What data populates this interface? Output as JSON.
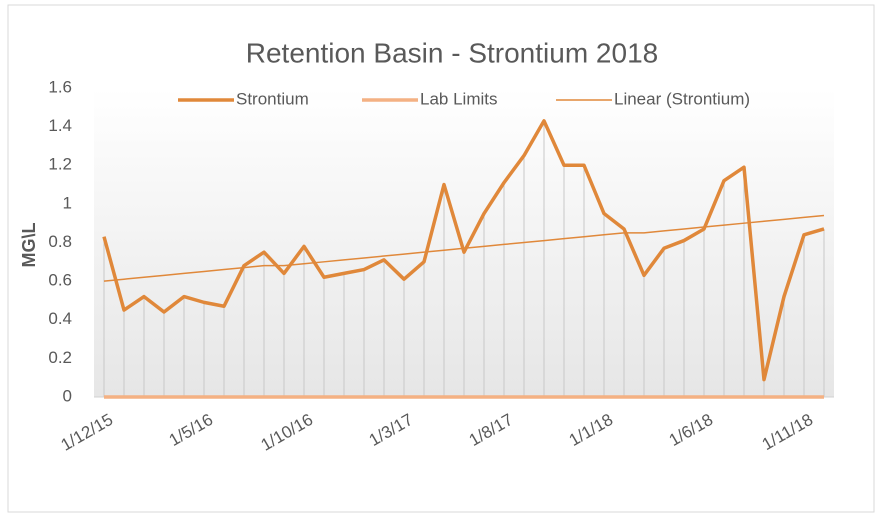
{
  "chart_data": {
    "type": "line",
    "title": "Retention Basin - Strontium 2018",
    "y_label": "MG\\L",
    "categories": [
      "1/12/15",
      null,
      null,
      null,
      null,
      "1/5/16",
      null,
      null,
      null,
      null,
      "1/10/16",
      null,
      null,
      null,
      null,
      "1/3/17",
      null,
      null,
      null,
      null,
      "1/8/17",
      null,
      null,
      null,
      null,
      "1/1/18",
      null,
      null,
      null,
      null,
      "1/6/18",
      null,
      null,
      null,
      null,
      "1/11/18",
      null
    ],
    "series": [
      {
        "name": "Strontium",
        "color": "#e0883a",
        "values": [
          0.83,
          0.45,
          0.52,
          0.44,
          0.52,
          0.49,
          0.47,
          0.68,
          0.75,
          0.64,
          0.78,
          0.62,
          0.64,
          0.66,
          0.71,
          0.61,
          0.7,
          1.1,
          0.75,
          0.95,
          1.11,
          1.25,
          1.43,
          1.2,
          1.2,
          0.95,
          0.87,
          0.63,
          0.77,
          0.81,
          0.87,
          1.12,
          1.19,
          0.09,
          0.52,
          0.84,
          0.87
        ]
      },
      {
        "name": "Lab Limits",
        "color": "#f4b183",
        "values": [
          0,
          0,
          0,
          0,
          0,
          0,
          0,
          0,
          0,
          0,
          0,
          0,
          0,
          0,
          0,
          0,
          0,
          0,
          0,
          0,
          0,
          0,
          0,
          0,
          0,
          0,
          0,
          0,
          0,
          0,
          0,
          0,
          0,
          0,
          0,
          0,
          0
        ]
      },
      {
        "name": "Linear (Strontium)",
        "color": "#e0883a",
        "values": [
          0.6,
          0.61,
          0.62,
          0.63,
          0.64,
          0.65,
          0.66,
          0.67,
          0.68,
          0.68,
          0.69,
          0.7,
          0.71,
          0.72,
          0.73,
          0.74,
          0.75,
          0.76,
          0.77,
          0.78,
          0.79,
          0.8,
          0.81,
          0.82,
          0.83,
          0.84,
          0.85,
          0.85,
          0.86,
          0.87,
          0.88,
          0.89,
          0.9,
          0.91,
          0.92,
          0.93,
          0.94
        ]
      }
    ],
    "ylim": [
      0,
      1.6
    ],
    "yticks": [
      0,
      0.2,
      0.4,
      0.6,
      0.8,
      1,
      1.2,
      1.4,
      1.6
    ],
    "drop_lines": true,
    "legend": "top"
  }
}
